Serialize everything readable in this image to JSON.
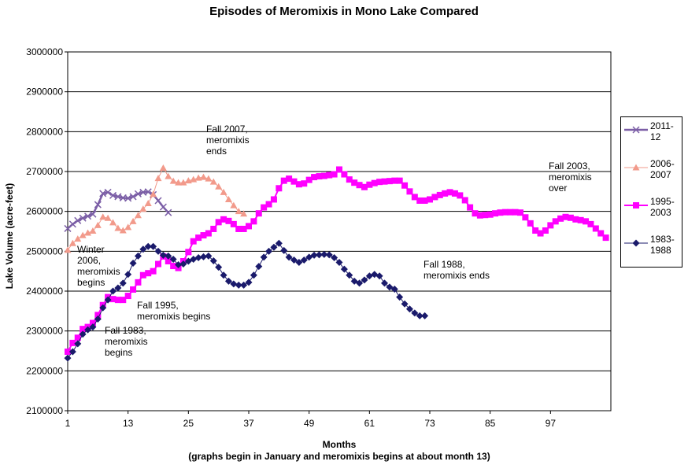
{
  "chart_data": {
    "type": "line",
    "title": "Episodes of Meromixis in Mono Lake Compared",
    "xlabel": "Months",
    "xlabel_sub": "(graphs begin in January and meromixis begins at about month 13)",
    "ylabel": "Lake Volume (acre-feet)",
    "xlim": [
      1,
      109
    ],
    "ylim": [
      2100000,
      3000000
    ],
    "x_ticks": [
      "1",
      "13",
      "25",
      "37",
      "49",
      "61",
      "73",
      "85",
      "97"
    ],
    "y_ticks": [
      "2100000",
      "2200000",
      "2300000",
      "2400000",
      "2500000",
      "2600000",
      "2700000",
      "2800000",
      "2900000",
      "3000000"
    ],
    "grid": "horizontal",
    "legend_position": "right",
    "series": [
      {
        "name": "2011-\n12",
        "color": "#7b5ea6",
        "marker": "x",
        "values": [
          2557000,
          2568000,
          2577000,
          2583000,
          2588000,
          2593000,
          2617000,
          2645000,
          2648000,
          2640000,
          2637000,
          2634000,
          2633000,
          2637000,
          2644000,
          2648000,
          2649000,
          2642000,
          2627000,
          2611000,
          2597000
        ]
      },
      {
        "name": "2006-\n2007",
        "color": "#f29a8b",
        "marker": "triangle",
        "values": [
          2503000,
          2520000,
          2531000,
          2540000,
          2546000,
          2551000,
          2565000,
          2586000,
          2583000,
          2572000,
          2558000,
          2552000,
          2560000,
          2575000,
          2590000,
          2606000,
          2620000,
          2643000,
          2683000,
          2709000,
          2688000,
          2676000,
          2672000,
          2672000,
          2677000,
          2680000,
          2684000,
          2686000,
          2682000,
          2674000,
          2662000,
          2648000,
          2630000,
          2615000,
          2600000,
          2594000
        ]
      },
      {
        "name": "1995-\n2003",
        "color": "#ff00ff",
        "marker": "square",
        "values": [
          2248000,
          2270000,
          2283000,
          2305000,
          2310000,
          2320000,
          2340000,
          2365000,
          2385000,
          2380000,
          2378000,
          2378000,
          2388000,
          2404000,
          2422000,
          2440000,
          2445000,
          2450000,
          2468000,
          2487000,
          2475000,
          2463000,
          2458000,
          2475000,
          2498000,
          2525000,
          2534000,
          2540000,
          2545000,
          2556000,
          2573000,
          2580000,
          2576000,
          2568000,
          2556000,
          2556000,
          2563000,
          2575000,
          2595000,
          2610000,
          2618000,
          2630000,
          2658000,
          2677000,
          2682000,
          2675000,
          2668000,
          2670000,
          2679000,
          2686000,
          2688000,
          2689000,
          2691000,
          2693000,
          2705000,
          2693000,
          2680000,
          2672000,
          2666000,
          2661000,
          2667000,
          2671000,
          2674000,
          2675000,
          2676000,
          2677000,
          2677000,
          2665000,
          2650000,
          2636000,
          2627000,
          2627000,
          2630000,
          2636000,
          2641000,
          2645000,
          2648000,
          2645000,
          2640000,
          2628000,
          2610000,
          2595000,
          2590000,
          2591000,
          2592000,
          2595000,
          2597000,
          2598000,
          2598000,
          2598000,
          2597000,
          2585000,
          2570000,
          2552000,
          2545000,
          2552000,
          2565000,
          2575000,
          2582000,
          2586000,
          2584000,
          2580000,
          2578000,
          2575000,
          2568000,
          2557000,
          2545000,
          2534000
        ]
      },
      {
        "name": "1983-\n1988",
        "color": "#1a1a6b",
        "marker": "diamond",
        "values": [
          2232000,
          2248000,
          2268000,
          2292000,
          2303000,
          2310000,
          2330000,
          2358000,
          2378000,
          2400000,
          2408000,
          2420000,
          2442000,
          2470000,
          2488000,
          2505000,
          2512000,
          2512000,
          2500000,
          2490000,
          2488000,
          2480000,
          2466000,
          2468000,
          2475000,
          2480000,
          2484000,
          2486000,
          2488000,
          2476000,
          2460000,
          2440000,
          2425000,
          2418000,
          2415000,
          2415000,
          2422000,
          2440000,
          2462000,
          2485000,
          2500000,
          2510000,
          2520000,
          2502000,
          2485000,
          2478000,
          2472000,
          2478000,
          2485000,
          2490000,
          2491000,
          2492000,
          2491000,
          2484000,
          2472000,
          2455000,
          2440000,
          2425000,
          2420000,
          2428000,
          2438000,
          2442000,
          2438000,
          2420000,
          2410000,
          2405000,
          2385000,
          2368000,
          2355000,
          2345000,
          2338000,
          2338000
        ]
      }
    ],
    "annotations": [
      {
        "id": "fall2007",
        "text": "Fall 2007,\nmeromixis\nends"
      },
      {
        "id": "fall2003",
        "text": "Fall 2003,\nmeromixis\nover"
      },
      {
        "id": "winter2006",
        "text": "Winter\n2006,\nmeromixis\nbegins"
      },
      {
        "id": "fall1988",
        "text": "Fall 1988,\nmeromixis ends"
      },
      {
        "id": "fall1995",
        "text": "Fall 1995,\nmeromixis begins"
      },
      {
        "id": "fall1983",
        "text": "Fall 1983,\nmeromixis\nbegins"
      }
    ]
  }
}
